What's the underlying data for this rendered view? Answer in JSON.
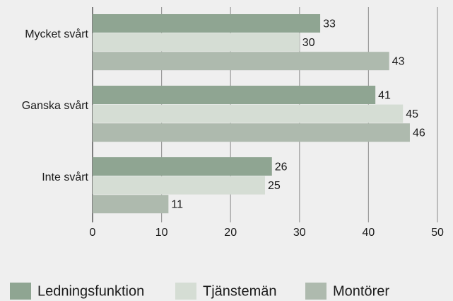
{
  "chart_data": {
    "type": "bar",
    "orientation": "horizontal",
    "categories": [
      "Mycket svårt",
      "Ganska svårt",
      "Inte svårt"
    ],
    "series": [
      {
        "name": "Ledningsfunktion",
        "color": "#8fa592",
        "values": [
          33,
          41,
          26
        ]
      },
      {
        "name": "Tjänstemän",
        "color": "#d5ddd4",
        "values": [
          30,
          45,
          25
        ]
      },
      {
        "name": "Montörer",
        "color": "#aebaae",
        "values": [
          43,
          46,
          11
        ]
      }
    ],
    "xlim": [
      0,
      50
    ],
    "xticks": [
      0,
      10,
      20,
      30,
      40,
      50
    ],
    "grid": true,
    "legend": "bottom"
  }
}
